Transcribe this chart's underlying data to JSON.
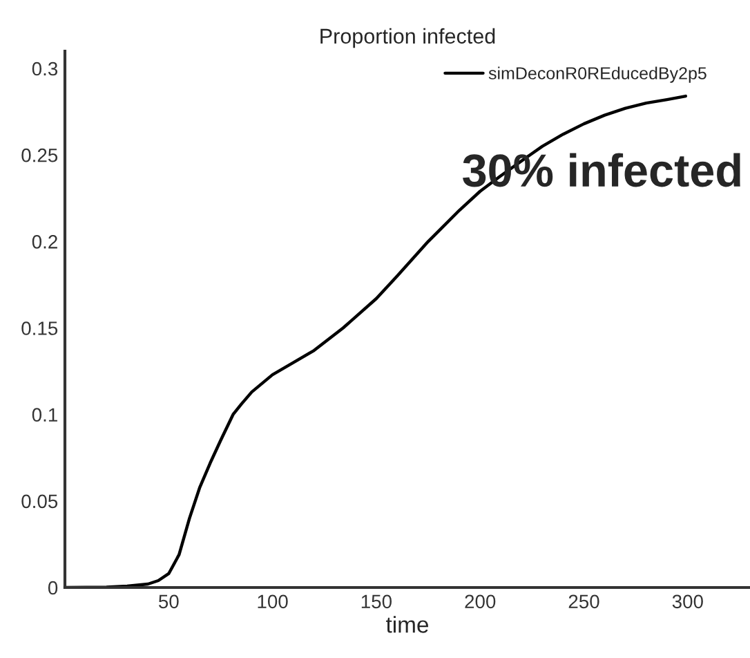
{
  "chart_data": {
    "type": "line",
    "title": "Proportion infected",
    "xlabel": "time",
    "annotations": [
      "30% infected"
    ],
    "x": [
      0,
      20,
      30,
      40,
      45,
      50,
      55,
      60,
      65,
      70,
      75,
      81,
      85,
      90,
      95,
      100,
      110,
      120,
      134,
      150,
      160,
      175,
      180,
      190,
      200,
      210,
      224,
      230,
      240,
      250,
      260,
      270,
      280,
      290,
      299
    ],
    "series": [
      {
        "name": "simDeconR0REducedBy2p5",
        "color": "#000000",
        "values": [
          0,
          0.0002,
          0.0008,
          0.002,
          0.004,
          0.008,
          0.019,
          0.04,
          0.058,
          0.072,
          0.085,
          0.1,
          0.106,
          0.113,
          0.118,
          0.123,
          0.13,
          0.137,
          0.15,
          0.167,
          0.18,
          0.2,
          0.206,
          0.218,
          0.229,
          0.238,
          0.25,
          0.255,
          0.262,
          0.268,
          0.273,
          0.277,
          0.28,
          0.282,
          0.284
        ]
      }
    ],
    "xlim": [
      0,
      330
    ],
    "ylim": [
      0,
      0.31
    ],
    "xticks": [
      50,
      100,
      150,
      200,
      250,
      300
    ],
    "yticks": [
      0,
      0.05,
      0.1,
      0.15,
      0.2,
      0.25,
      0.3
    ],
    "grid": false,
    "legend": "top right",
    "marker": "none",
    "line_style": "solid"
  }
}
